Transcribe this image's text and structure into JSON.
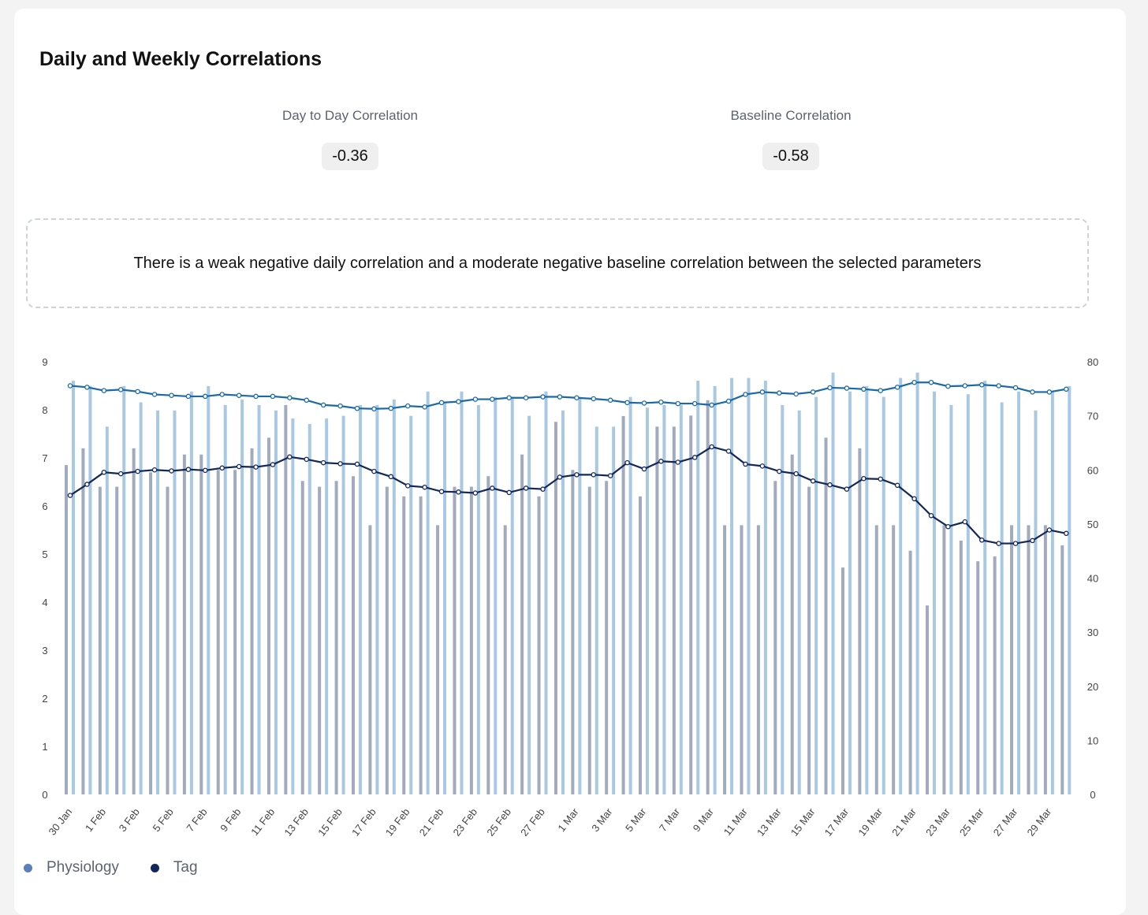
{
  "header": {
    "title": "Daily and Weekly Correlations"
  },
  "stats": {
    "day_to_day": {
      "label": "Day to Day Correlation",
      "value": "-0.36"
    },
    "baseline": {
      "label": "Baseline Correlation",
      "value": "-0.58"
    }
  },
  "summary": {
    "text": "There is a weak negative daily correlation and a moderate negative baseline correlation between the selected parameters"
  },
  "legend": [
    {
      "label": "Physiology",
      "color": "#5b7fb8"
    },
    {
      "label": "Tag",
      "color": "#13285a"
    }
  ],
  "chart_data": {
    "type": "bar",
    "x": [
      "30 Jan",
      "31 Jan",
      "1 Feb",
      "2 Feb",
      "3 Feb",
      "4 Feb",
      "5 Feb",
      "6 Feb",
      "7 Feb",
      "8 Feb",
      "9 Feb",
      "10 Feb",
      "11 Feb",
      "12 Feb",
      "13 Feb",
      "14 Feb",
      "15 Feb",
      "16 Feb",
      "17 Feb",
      "18 Feb",
      "19 Feb",
      "20 Feb",
      "21 Feb",
      "22 Feb",
      "23 Feb",
      "24 Feb",
      "25 Feb",
      "26 Feb",
      "27 Feb",
      "28 Feb",
      "1 Mar",
      "2 Mar",
      "3 Mar",
      "4 Mar",
      "5 Mar",
      "6 Mar",
      "7 Mar",
      "8 Mar",
      "9 Mar",
      "10 Mar",
      "11 Mar",
      "12 Mar",
      "13 Mar",
      "14 Mar",
      "15 Mar",
      "16 Mar",
      "17 Mar",
      "18 Mar",
      "19 Mar",
      "20 Mar",
      "21 Mar",
      "22 Mar",
      "23 Mar",
      "24 Mar",
      "25 Mar",
      "26 Mar",
      "27 Mar",
      "28 Mar",
      "29 Mar",
      "30 Mar"
    ],
    "x_tick_labels": [
      "30 Jan",
      "1 Feb",
      "3 Feb",
      "5 Feb",
      "7 Feb",
      "9 Feb",
      "11 Feb",
      "13 Feb",
      "15 Feb",
      "17 Feb",
      "19 Feb",
      "21 Feb",
      "23 Feb",
      "25 Feb",
      "27 Feb",
      "1 Mar",
      "3 Mar",
      "5 Mar",
      "7 Mar",
      "9 Mar",
      "11 Mar",
      "13 Mar",
      "15 Mar",
      "17 Mar",
      "19 Mar",
      "21 Mar",
      "23 Mar",
      "25 Mar",
      "27 Mar",
      "29 Mar"
    ],
    "y_left": {
      "ticks": [
        0,
        1,
        2,
        3,
        4,
        5,
        6,
        7,
        8,
        9
      ],
      "range": [
        0,
        9
      ]
    },
    "y_right": {
      "ticks": [
        0,
        10,
        20,
        30,
        40,
        50,
        60,
        70,
        80
      ],
      "range": [
        0,
        80
      ]
    },
    "series": [
      {
        "name": "Physiology",
        "kind": "bar",
        "axis": "right",
        "color": "#a9c8e2",
        "values": [
          76.5,
          75.5,
          68,
          75.5,
          72.5,
          71,
          71,
          74.5,
          75.5,
          72,
          73,
          72,
          71,
          69.5,
          68.5,
          69.5,
          70,
          72,
          72,
          73,
          70,
          74.5,
          72.5,
          74.5,
          72,
          73.5,
          73.5,
          70,
          74.5,
          71,
          73.5,
          68,
          68,
          73.5,
          71.5,
          72,
          72,
          76.5,
          75.5,
          77,
          77,
          76.5,
          72,
          71,
          73.5,
          78,
          74.5,
          75.5,
          73.5,
          77,
          78,
          74.5,
          72,
          74,
          76.5,
          72.5,
          74.5,
          71,
          74.5,
          75.5
        ]
      },
      {
        "name": "Tag",
        "kind": "bar",
        "axis": "left",
        "color": "#a2aabd",
        "values": [
          6.85,
          7.2,
          6.4,
          6.4,
          7.2,
          6.7,
          6.4,
          7.07,
          7.07,
          6.75,
          6.75,
          7.2,
          7.42,
          8.1,
          6.52,
          6.4,
          6.52,
          6.62,
          5.6,
          6.4,
          6.2,
          6.2,
          5.6,
          6.4,
          6.4,
          6.62,
          5.6,
          7.07,
          6.2,
          7.75,
          6.75,
          6.4,
          6.52,
          7.87,
          6.2,
          7.65,
          7.65,
          7.88,
          8.2,
          5.6,
          5.6,
          5.6,
          6.52,
          7.07,
          6.4,
          7.42,
          4.72,
          7.2,
          5.6,
          5.6,
          5.07,
          3.93,
          5.6,
          5.28,
          4.85,
          4.95,
          5.6,
          5.6,
          5.6,
          5.18
        ]
      },
      {
        "name": "Physiology",
        "kind": "line",
        "axis": "left",
        "color": "#1b6aa8",
        "values": [
          8.5,
          8.47,
          8.4,
          8.42,
          8.38,
          8.32,
          8.3,
          8.28,
          8.28,
          8.32,
          8.3,
          8.28,
          8.28,
          8.25,
          8.2,
          8.1,
          8.08,
          8.03,
          8.02,
          8.03,
          8.08,
          8.06,
          8.15,
          8.17,
          8.22,
          8.22,
          8.25,
          8.25,
          8.27,
          8.27,
          8.25,
          8.23,
          8.2,
          8.15,
          8.14,
          8.16,
          8.13,
          8.13,
          8.1,
          8.18,
          8.32,
          8.37,
          8.35,
          8.33,
          8.37,
          8.46,
          8.45,
          8.43,
          8.4,
          8.47,
          8.57,
          8.57,
          8.49,
          8.5,
          8.52,
          8.5,
          8.46,
          8.37,
          8.37,
          8.43
        ]
      },
      {
        "name": "Tag",
        "kind": "line",
        "axis": "left",
        "color": "#13285a",
        "values": [
          6.22,
          6.45,
          6.7,
          6.67,
          6.72,
          6.75,
          6.73,
          6.76,
          6.74,
          6.79,
          6.82,
          6.81,
          6.86,
          7.02,
          6.97,
          6.9,
          6.88,
          6.87,
          6.72,
          6.61,
          6.42,
          6.39,
          6.3,
          6.29,
          6.27,
          6.37,
          6.28,
          6.37,
          6.35,
          6.6,
          6.65,
          6.65,
          6.63,
          6.9,
          6.77,
          6.93,
          6.91,
          7.01,
          7.23,
          7.14,
          6.87,
          6.83,
          6.72,
          6.67,
          6.52,
          6.44,
          6.35,
          6.57,
          6.56,
          6.43,
          6.15,
          5.8,
          5.57,
          5.67,
          5.29,
          5.22,
          5.22,
          5.28,
          5.5,
          5.43
        ]
      }
    ],
    "legend_position": "bottom-left",
    "grid": false
  }
}
